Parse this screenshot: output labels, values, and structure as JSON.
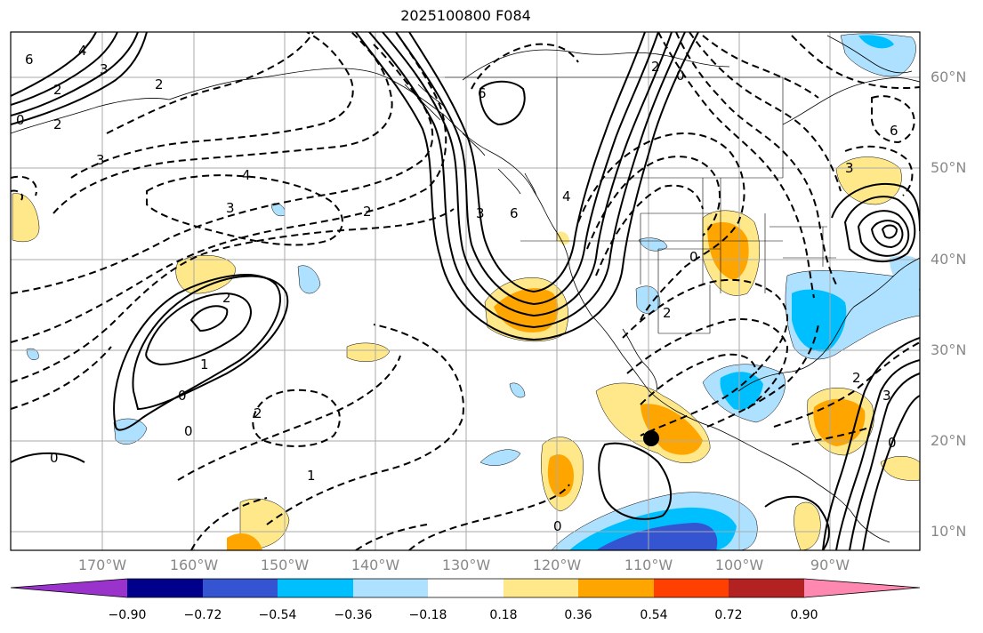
{
  "title": "2025100800 F084",
  "lat_labels": [
    "60°N",
    "50°N",
    "40°N",
    "30°N",
    "20°N",
    "10°N"
  ],
  "lon_labels": [
    "170°W",
    "160°W",
    "150°W",
    "140°W",
    "130°W",
    "120°W",
    "110°W",
    "100°W",
    "90°W"
  ],
  "contour_labels": [
    "6",
    "4",
    "3",
    "2",
    "2",
    "0",
    "2",
    "3",
    "4",
    "3",
    "2",
    "2",
    "1",
    "0",
    "0",
    "2",
    "1",
    "0",
    "6",
    "3",
    "6",
    "4",
    "2",
    "0",
    "2",
    "6",
    "3",
    "0",
    "2",
    "3",
    "0",
    "0"
  ],
  "colorbar": {
    "ticks": [
      "−0.90",
      "−0.72",
      "−0.54",
      "−0.36",
      "−0.18",
      "0.18",
      "0.36",
      "0.54",
      "0.72",
      "0.90"
    ],
    "colors": [
      "#9a33cc",
      "#00008b",
      "#3454d1",
      "#00bfff",
      "#aee1ff",
      "#ffffff",
      "#ffe88a",
      "#ffa500",
      "#ff4000",
      "#b22222",
      "#ff88b0"
    ]
  },
  "marker": "storm-center"
}
